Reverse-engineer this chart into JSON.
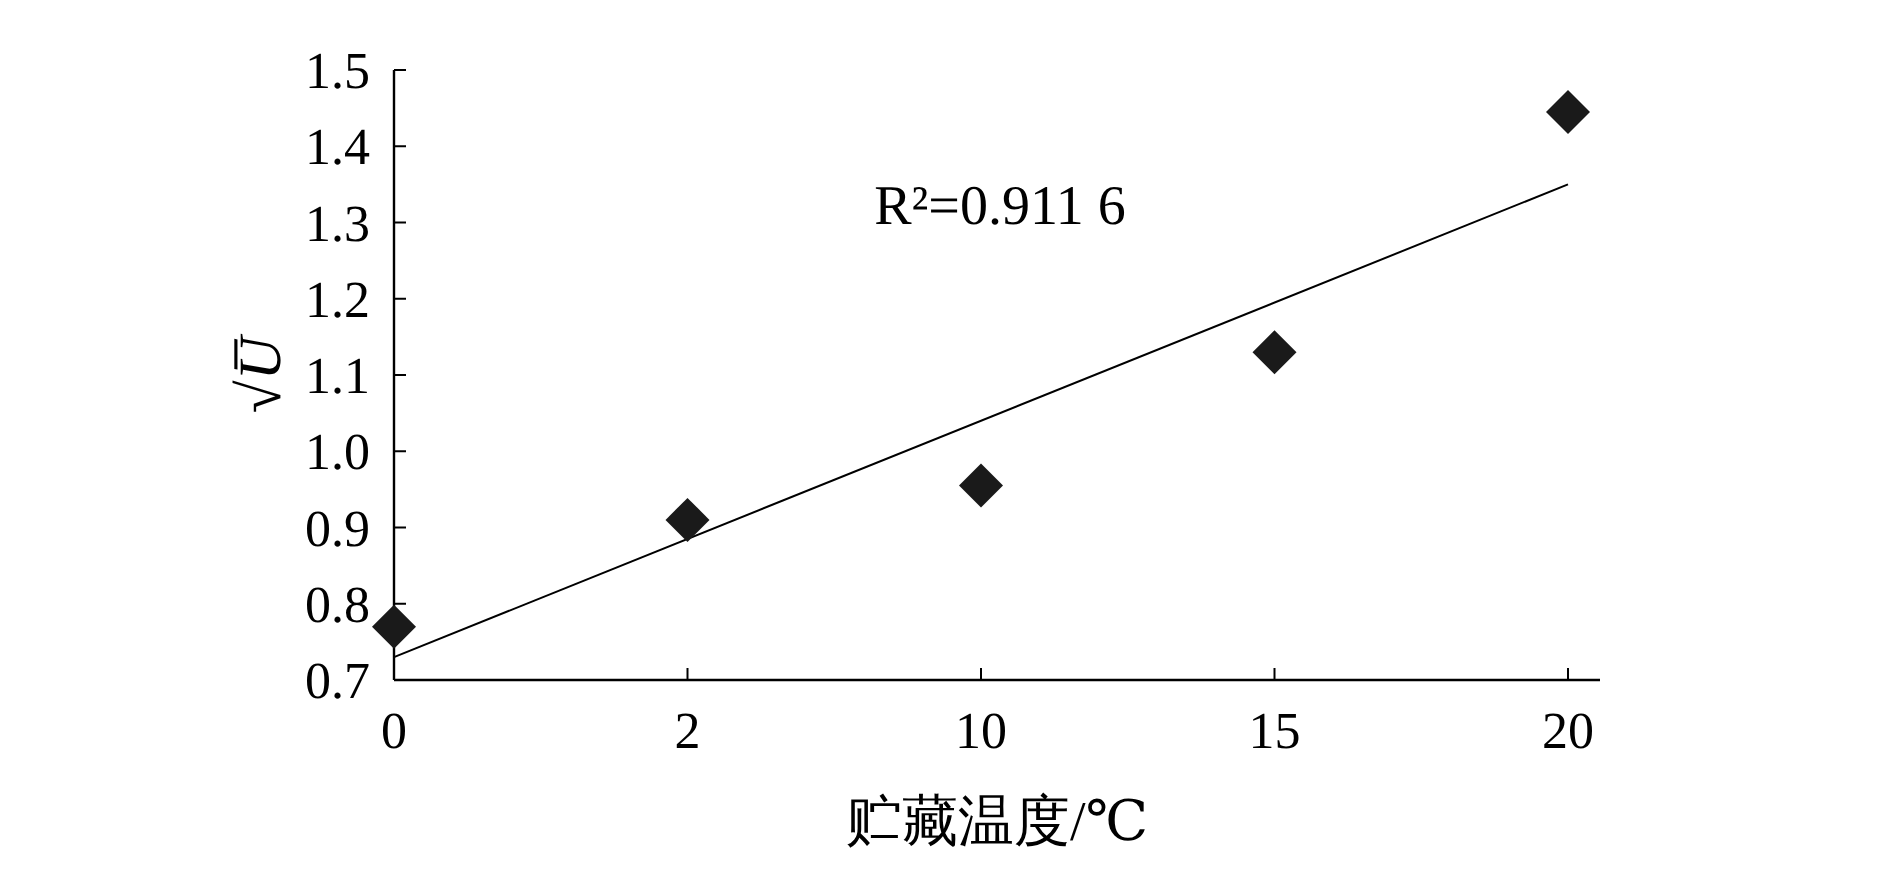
{
  "chart_data": {
    "type": "scatter",
    "categories": [
      "0",
      "2",
      "10",
      "15",
      "20"
    ],
    "xlabel": "贮藏温度/℃",
    "ylabel": "√U̅",
    "ylim": [
      0.7,
      1.5
    ],
    "yticks": [
      0.7,
      0.8,
      0.9,
      {
        "value": 1,
        "label": "1.0"
      },
      1.1,
      1.2,
      1.3,
      1.4,
      1.5
    ],
    "annotations": [
      "R²=0.911 6"
    ],
    "marker": "diamond",
    "grid": false,
    "series": [
      {
        "type": "scatter",
        "color": "#1a1a1a",
        "values": [
          0.77,
          0.91,
          0.955,
          1.13,
          1.445
        ]
      },
      {
        "type": "line",
        "color": "#000000",
        "x": [
          "0",
          "20"
        ],
        "values": [
          0.73,
          1.35
        ],
        "marker": "none"
      }
    ]
  }
}
